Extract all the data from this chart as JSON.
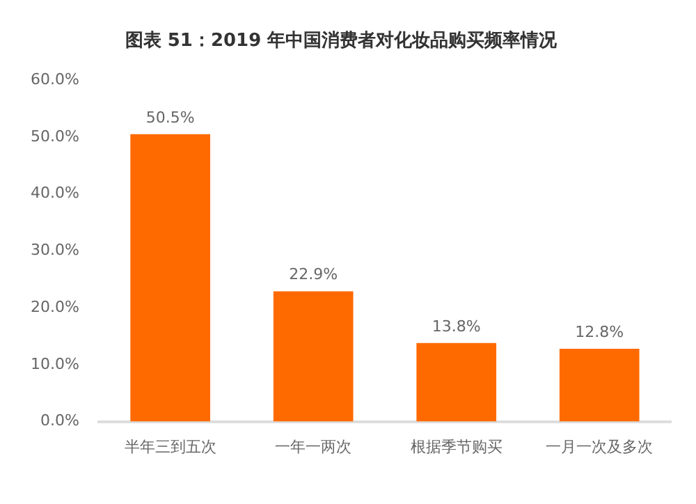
{
  "chart_data": {
    "type": "bar",
    "title": "图表 51：2019 年中国消费者对化妆品购买频率情况",
    "categories": [
      "半年三到五次",
      "一年一两次",
      "根据季节购买",
      "一月一次及多次"
    ],
    "values": [
      50.5,
      22.9,
      13.8,
      12.8
    ],
    "color": "#ff6a00",
    "value_labels": [
      "50.5%",
      "22.9%",
      "13.8%",
      "12.8%"
    ],
    "ylim": [
      0,
      60
    ],
    "yticks": [
      {
        "value": 0,
        "label": "0.0%"
      },
      {
        "value": 10,
        "label": "10.0%"
      },
      {
        "value": 20,
        "label": "20.0%"
      },
      {
        "value": 30,
        "label": "30.0%"
      },
      {
        "value": 40,
        "label": "40.0%"
      },
      {
        "value": 50,
        "label": "50.0%"
      },
      {
        "value": 60,
        "label": "60.0%"
      }
    ],
    "grid": false,
    "legend": false
  }
}
